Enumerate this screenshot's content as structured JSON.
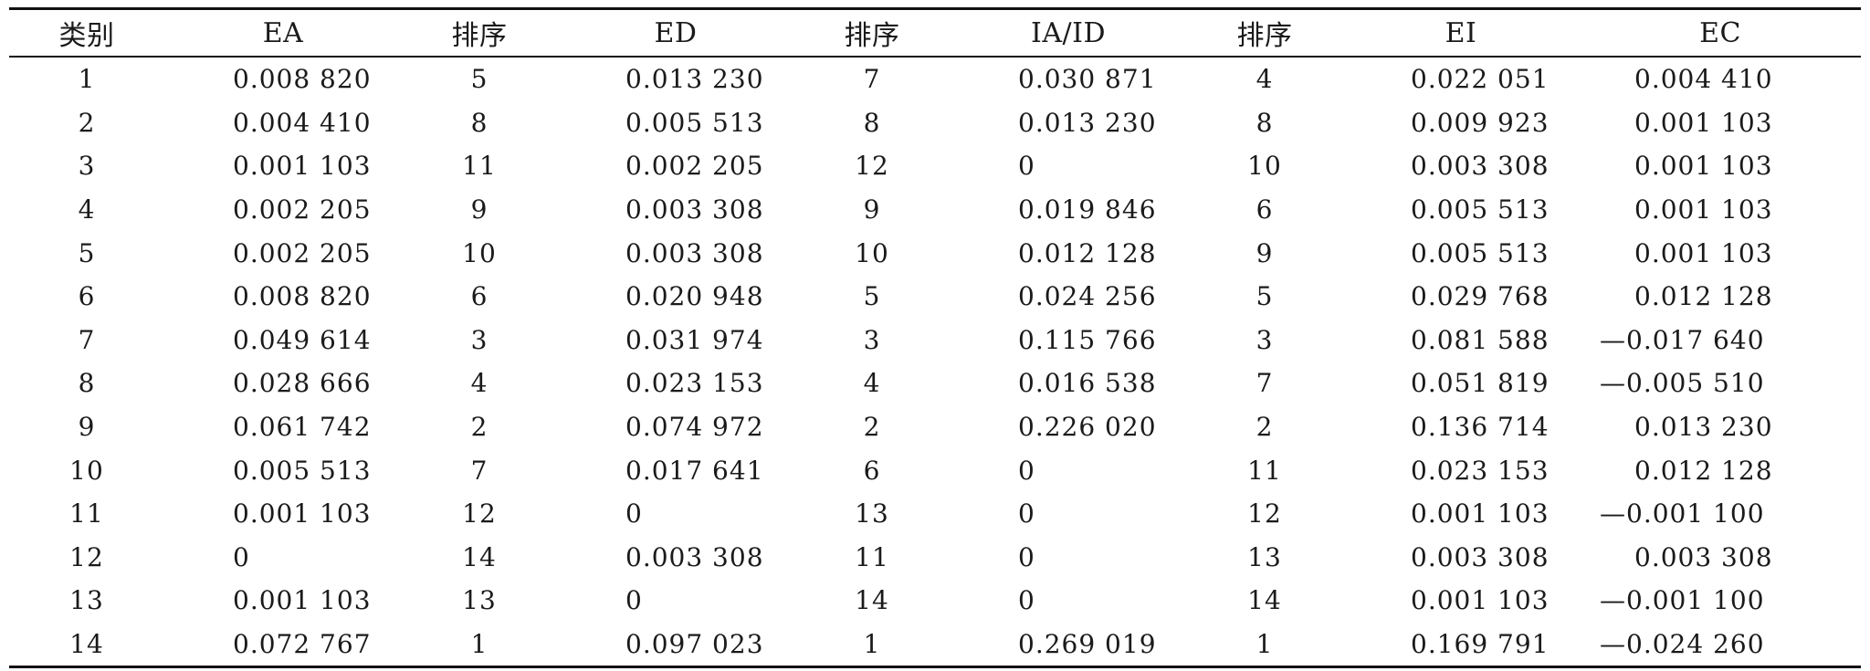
{
  "table": {
    "headers": [
      "类别",
      "EA",
      "排序",
      "ED",
      "排序",
      "IA/ID",
      "排序",
      "EI",
      "EC"
    ],
    "rows": [
      [
        "1",
        "0.008 820",
        "5",
        "0.013 230",
        "7",
        "0.030 871",
        "4",
        "0.022 051",
        "0.004 410"
      ],
      [
        "2",
        "0.004 410",
        "8",
        "0.005 513",
        "8",
        "0.013 230",
        "8",
        "0.009 923",
        "0.001 103"
      ],
      [
        "3",
        "0.001 103",
        "11",
        "0.002 205",
        "12",
        "0",
        "10",
        "0.003 308",
        "0.001 103"
      ],
      [
        "4",
        "0.002 205",
        "9",
        "0.003 308",
        "9",
        "0.019 846",
        "6",
        "0.005 513",
        "0.001 103"
      ],
      [
        "5",
        "0.002 205",
        "10",
        "0.003 308",
        "10",
        "0.012 128",
        "9",
        "0.005 513",
        "0.001 103"
      ],
      [
        "6",
        "0.008 820",
        "6",
        "0.020 948",
        "5",
        "0.024 256",
        "5",
        "0.029 768",
        "0.012 128"
      ],
      [
        "7",
        "0.049 614",
        "3",
        "0.031 974",
        "3",
        "0.115 766",
        "3",
        "0.081 588",
        "—0.017 640"
      ],
      [
        "8",
        "0.028 666",
        "4",
        "0.023 153",
        "4",
        "0.016 538",
        "7",
        "0.051 819",
        "—0.005 510"
      ],
      [
        "9",
        "0.061 742",
        "2",
        "0.074 972",
        "2",
        "0.226 020",
        "2",
        "0.136 714",
        "0.013 230"
      ],
      [
        "10",
        "0.005 513",
        "7",
        "0.017 641",
        "6",
        "0",
        "11",
        "0.023 153",
        "0.012 128"
      ],
      [
        "11",
        "0.001 103",
        "12",
        "0",
        "13",
        "0",
        "12",
        "0.001 103",
        "—0.001 100"
      ],
      [
        "12",
        "0",
        "14",
        "0.003 308",
        "11",
        "0",
        "13",
        "0.003 308",
        "0.003 308"
      ],
      [
        "13",
        "0.001 103",
        "13",
        "0",
        "14",
        "0",
        "14",
        "0.001 103",
        "—0.001 100"
      ],
      [
        "14",
        "0.072 767",
        "1",
        "0.097 023",
        "1",
        "0.269 019",
        "1",
        "0.169 791",
        "—0.024 260"
      ]
    ]
  }
}
